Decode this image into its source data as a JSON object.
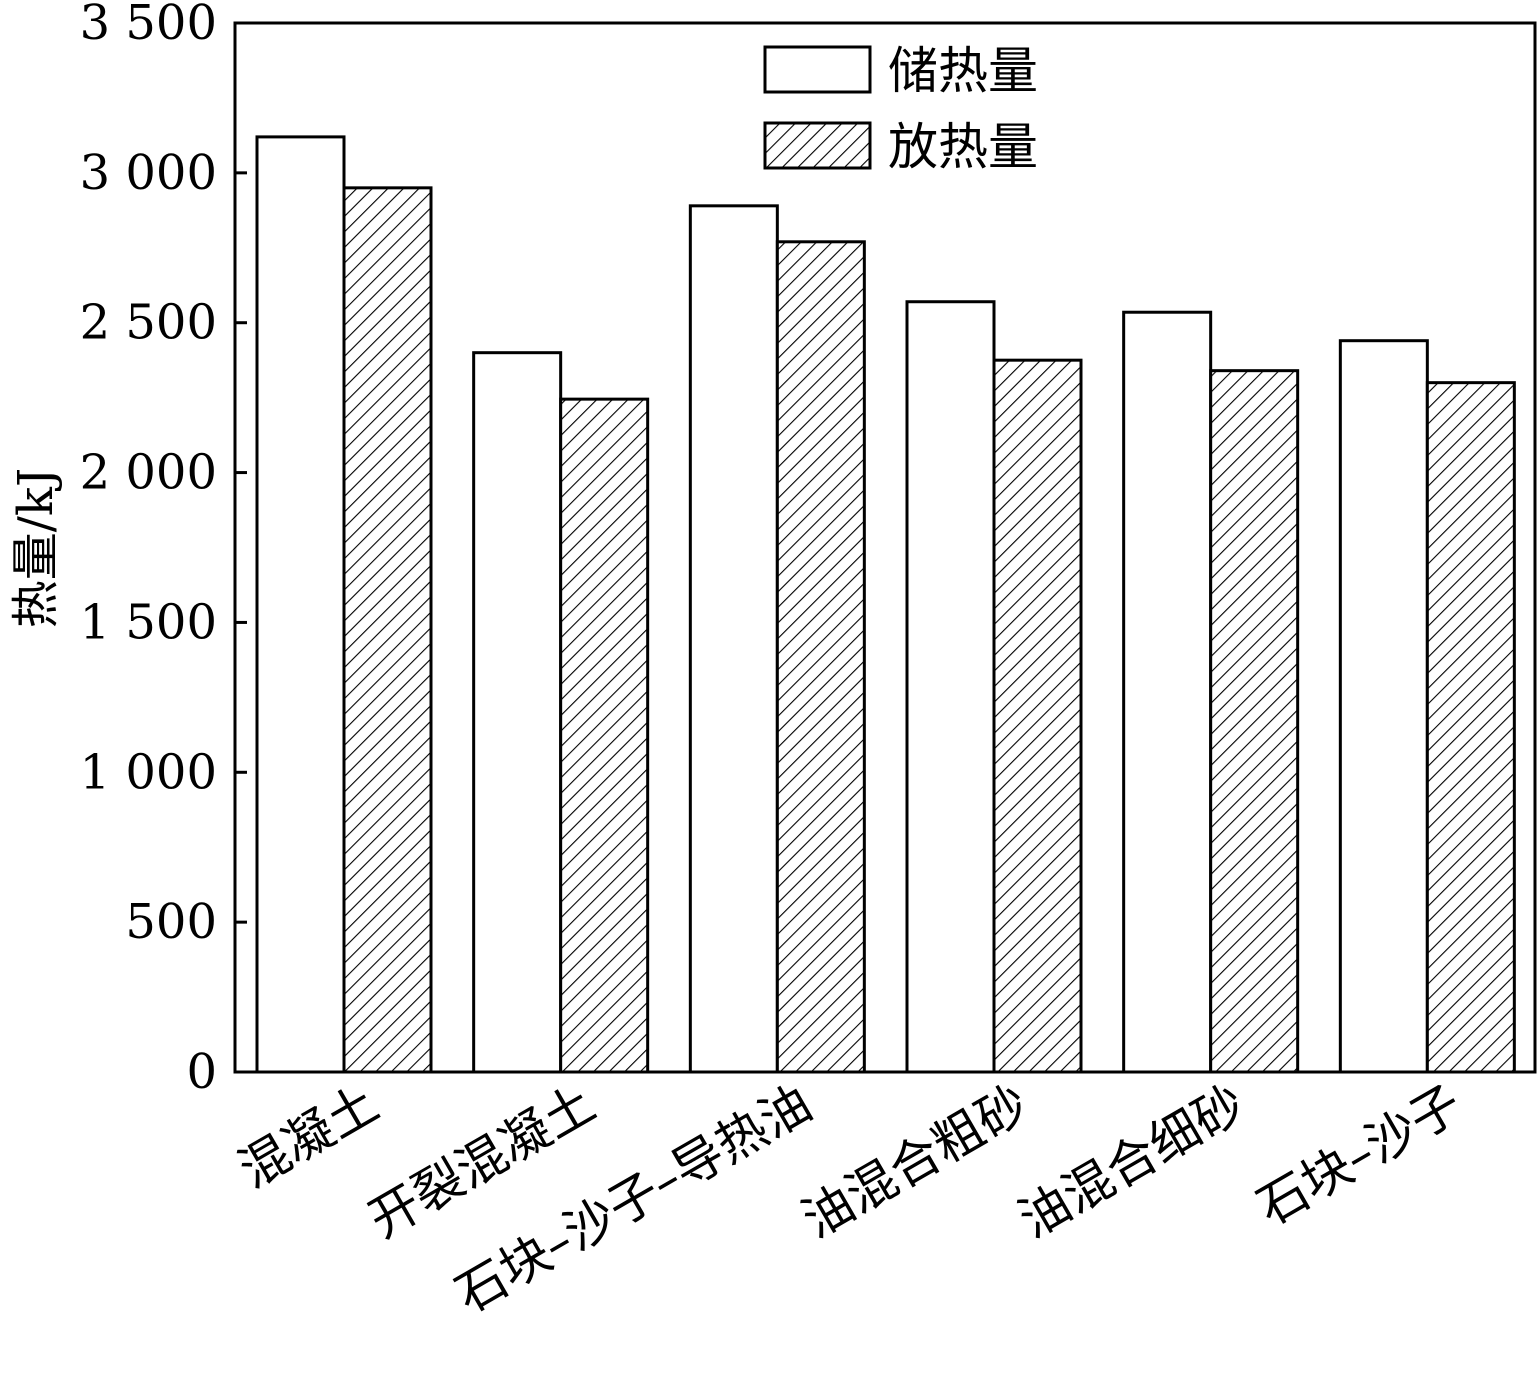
{
  "chart_data": {
    "type": "bar",
    "ylabel": "热量/kJ",
    "ylim": [
      0,
      3500
    ],
    "yticks": [
      0,
      500,
      1000,
      1500,
      2000,
      2500,
      3000,
      3500
    ],
    "ytick_labels": [
      "0",
      "500",
      "1 000",
      "1 500",
      "2 000",
      "2 500",
      "3 000",
      "3 500"
    ],
    "categories": [
      "混凝土",
      "开裂混凝土",
      "石块–沙子–导热油",
      "油混合粗砂",
      "油混合细砂",
      "石块–沙子"
    ],
    "series": [
      {
        "name": "储热量",
        "pattern": "solid-white",
        "values": [
          3120,
          2400,
          2890,
          2570,
          2535,
          2440
        ]
      },
      {
        "name": "放热量",
        "pattern": "diagonal-hatch",
        "values": [
          2950,
          2245,
          2770,
          2375,
          2340,
          2300
        ]
      }
    ],
    "legend": "top-center",
    "grid": false,
    "colors": {
      "stroke": "#000000",
      "fill": "#ffffff",
      "hatch": "#000000"
    }
  }
}
